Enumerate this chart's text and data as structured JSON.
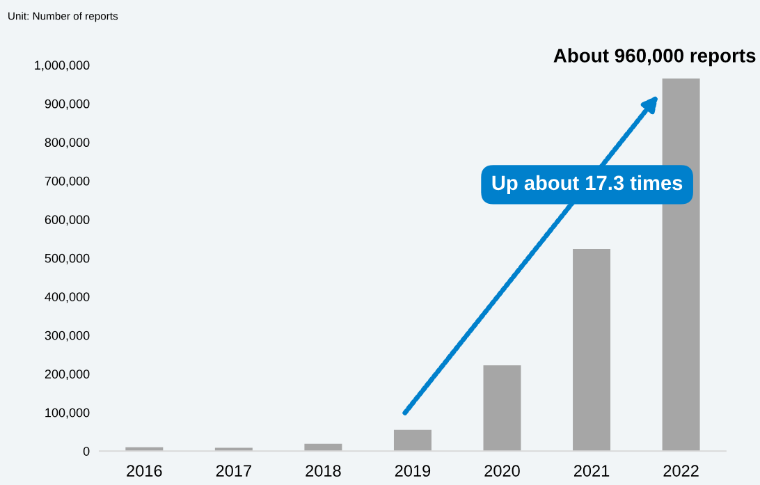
{
  "chart_data": {
    "type": "bar",
    "categories": [
      "2016",
      "2017",
      "2018",
      "2019",
      "2020",
      "2021",
      "2022"
    ],
    "values": [
      10000,
      8500,
      18700,
      55000,
      222000,
      523000,
      965000
    ],
    "color": "#a6a6a6",
    "ylim": [
      0,
      1000000
    ],
    "yticks": [
      {
        "value": 0,
        "label": "0"
      },
      {
        "value": 100000,
        "label": "100,000"
      },
      {
        "value": 200000,
        "label": "200,000"
      },
      {
        "value": 300000,
        "label": "300,000"
      },
      {
        "value": 400000,
        "label": "400,000"
      },
      {
        "value": 500000,
        "label": "500,000"
      },
      {
        "value": 600000,
        "label": "600,000"
      },
      {
        "value": 700000,
        "label": "700,000"
      },
      {
        "value": 800000,
        "label": "800,000"
      },
      {
        "value": 900000,
        "label": "900,000"
      },
      {
        "value": 1000000,
        "label": "1,000,000"
      }
    ],
    "grid": false,
    "legend": false,
    "annotations": [
      "Unit: Number of reports",
      "About 960,000 reports",
      "Up about 17.3 times"
    ]
  }
}
